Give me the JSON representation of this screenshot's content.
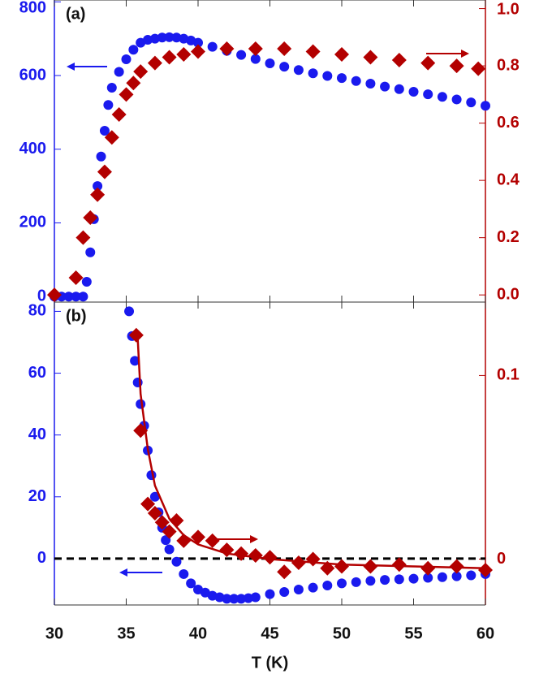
{
  "chart_data": [
    {
      "type": "scatter",
      "panel_label": "(a)",
      "xlim": [
        30,
        60
      ],
      "ylim": [
        -15,
        805
      ],
      "yticks": [
        0,
        200,
        400,
        600,
        800
      ],
      "y_color": "#1a1aee",
      "y2lim": [
        -0.025,
        1.03
      ],
      "y2ticks": [
        {
          "value": 0,
          "label": "0.0"
        },
        0.2,
        0.4,
        0.6,
        0.8,
        {
          "value": 1,
          "label": "1.0"
        }
      ],
      "y2_color": "#b30000",
      "series": [
        {
          "color": "#1a1aee",
          "marker": "circle",
          "x": [
            30,
            30.5,
            31,
            31.5,
            32,
            32.25,
            32.5,
            32.75,
            33,
            33.25,
            33.5,
            33.75,
            34,
            34.5,
            35,
            35.5,
            36,
            36.5,
            37,
            37.5,
            38,
            38.5,
            39,
            39.5,
            40,
            41,
            42,
            43,
            44,
            45,
            46,
            47,
            48,
            49,
            50,
            51,
            52,
            53,
            54,
            55,
            56,
            57,
            58,
            59,
            60
          ],
          "values": [
            0,
            0,
            0,
            0,
            0,
            40,
            120,
            210,
            300,
            380,
            450,
            520,
            567,
            610,
            644,
            670,
            689,
            697,
            700,
            703,
            704,
            703,
            700,
            695,
            689,
            678,
            667,
            656,
            645,
            633,
            624,
            615,
            606,
            599,
            593,
            585,
            578,
            570,
            563,
            556,
            549,
            542,
            535,
            527,
            518
          ]
        },
        {
          "color": "#b30000",
          "marker": "diamond",
          "axis": "y2",
          "x": [
            30,
            31.5,
            32,
            32.5,
            33,
            33.5,
            34,
            34.5,
            35,
            35.5,
            36,
            37,
            38,
            39,
            40,
            42,
            44,
            46,
            48,
            50,
            52,
            54,
            56,
            58,
            59.5
          ],
          "values": [
            0,
            0.06,
            0.2,
            0.27,
            0.35,
            0.43,
            0.55,
            0.63,
            0.7,
            0.74,
            0.78,
            0.81,
            0.83,
            0.84,
            0.85,
            0.86,
            0.86,
            0.86,
            0.85,
            0.84,
            0.83,
            0.82,
            0.81,
            0.8,
            0.79
          ]
        }
      ]
    },
    {
      "type": "scatter",
      "panel_label": "(b)",
      "xlim": [
        30,
        60
      ],
      "xticks": [
        30,
        35,
        40,
        45,
        50,
        55,
        60
      ],
      "x_label": "T (K)",
      "ylim": [
        -15,
        83
      ],
      "yticks": [
        0,
        20,
        40,
        60,
        80
      ],
      "y_color": "#1a1aee",
      "y2lim": [
        -0.025,
        0.14
      ],
      "y2ticks": [
        0,
        0.1
      ],
      "y2_color": "#b30000",
      "hline": {
        "value": 0,
        "color": "#000000"
      },
      "series": [
        {
          "color": "#1a1aee",
          "marker": "circle",
          "x": [
            35.2,
            35.4,
            35.6,
            35.8,
            36,
            36.25,
            36.5,
            36.75,
            37,
            37.25,
            37.5,
            37.75,
            38,
            38.5,
            39,
            39.5,
            40,
            40.5,
            41,
            41.5,
            42,
            42.5,
            43,
            43.5,
            44,
            45,
            46,
            47,
            48,
            49,
            50,
            51,
            52,
            53,
            54,
            55,
            56,
            57,
            58,
            59,
            60
          ],
          "values": [
            80,
            72,
            64,
            57,
            50,
            43,
            35,
            27,
            20,
            15,
            10,
            6,
            3,
            -1,
            -5,
            -8,
            -10,
            -11,
            -12,
            -12.5,
            -13,
            -13,
            -13,
            -12.8,
            -12.5,
            -11.5,
            -10.8,
            -10,
            -9.4,
            -8.7,
            -8,
            -7.6,
            -7.2,
            -6.9,
            -6.7,
            -6.5,
            -6.2,
            -6,
            -5.7,
            -5.4,
            -5
          ]
        },
        {
          "color": "#b30000",
          "marker": "diamond",
          "axis": "y2",
          "x": [
            35.7,
            36,
            36.5,
            37,
            37.5,
            38,
            38.5,
            39,
            40,
            41,
            42,
            43,
            44,
            45,
            46,
            47,
            48,
            49,
            50,
            52,
            54,
            56,
            58,
            60
          ],
          "values": [
            0.122,
            0.07,
            0.03,
            0.025,
            0.02,
            0.015,
            0.021,
            0.01,
            0.012,
            0.01,
            0.005,
            0.003,
            0.002,
            0.001,
            -0.007,
            -0.002,
            0,
            -0.005,
            -0.004,
            -0.004,
            -0.003,
            -0.005,
            -0.004,
            -0.006
          ]
        },
        {
          "color": "#b30000",
          "marker": "none",
          "axis": "y2",
          "x": [
            35.8,
            36,
            36.5,
            37,
            38,
            39,
            40,
            42,
            45,
            50,
            55,
            60
          ],
          "values": [
            0.12,
            0.09,
            0.06,
            0.04,
            0.022,
            0.013,
            0.008,
            0.003,
            0,
            -0.003,
            -0.004,
            -0.005
          ]
        }
      ]
    }
  ]
}
